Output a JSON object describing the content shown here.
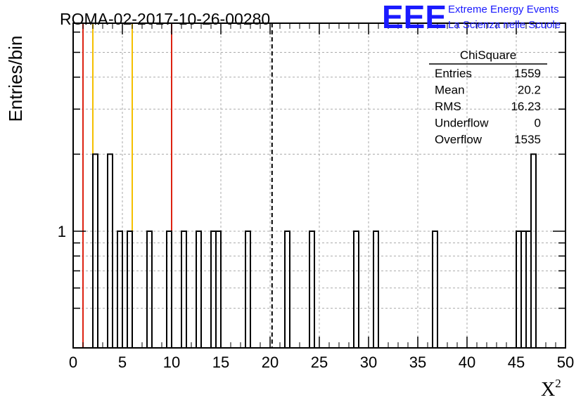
{
  "chart_data": {
    "type": "histogram",
    "title": "ROMA-02-2017-10-26-00280",
    "xlabel": "X",
    "xlabel_sup": "2",
    "ylabel": "Entries/bin",
    "xlim": [
      0,
      50
    ],
    "ylim": [
      0.35,
      6.5
    ],
    "yscale": "log",
    "grid": true,
    "x_ticks": [
      0,
      5,
      10,
      15,
      20,
      25,
      30,
      35,
      40,
      45,
      50
    ],
    "x_tick_labels": [
      "0",
      "5",
      "10",
      "15",
      "20",
      "25",
      "30",
      "35",
      "40",
      "45",
      "50"
    ],
    "y_tick_labels": [
      "1"
    ],
    "bin_width": 0.5,
    "bins": [
      {
        "x": 2.0,
        "count": 2
      },
      {
        "x": 3.5,
        "count": 2
      },
      {
        "x": 4.5,
        "count": 1
      },
      {
        "x": 5.5,
        "count": 1
      },
      {
        "x": 7.5,
        "count": 1
      },
      {
        "x": 9.5,
        "count": 1
      },
      {
        "x": 11.0,
        "count": 1
      },
      {
        "x": 12.5,
        "count": 1
      },
      {
        "x": 14.0,
        "count": 1
      },
      {
        "x": 14.5,
        "count": 1
      },
      {
        "x": 17.5,
        "count": 1
      },
      {
        "x": 21.5,
        "count": 1
      },
      {
        "x": 24.0,
        "count": 1
      },
      {
        "x": 28.5,
        "count": 1
      },
      {
        "x": 30.5,
        "count": 1
      },
      {
        "x": 36.5,
        "count": 1
      },
      {
        "x": 45.0,
        "count": 1
      },
      {
        "x": 45.5,
        "count": 1
      },
      {
        "x": 46.0,
        "count": 1
      },
      {
        "x": 46.5,
        "count": 2
      }
    ],
    "vertical_lines": [
      {
        "x": 1.0,
        "color": "#dd2211",
        "style": "solid"
      },
      {
        "x": 2.0,
        "color": "#f5c000",
        "style": "solid"
      },
      {
        "x": 6.0,
        "color": "#f5c000",
        "style": "solid"
      },
      {
        "x": 10.0,
        "color": "#dd2211",
        "style": "solid"
      },
      {
        "x": 20.2,
        "color": "#000000",
        "style": "dashed"
      }
    ],
    "stats_box": {
      "title": "ChiSquare",
      "rows": [
        {
          "label": "Entries",
          "value": "1559"
        },
        {
          "label": "Mean",
          "value": "20.2"
        },
        {
          "label": "RMS",
          "value": "16.23"
        },
        {
          "label": "Underflow",
          "value": "0"
        },
        {
          "label": "Overflow",
          "value": "1535"
        }
      ]
    },
    "logo": {
      "text": "EEE",
      "line1": "Extreme Energy Events",
      "line2": "La Scienza nelle Scuole",
      "color": "#1a1aff"
    }
  }
}
